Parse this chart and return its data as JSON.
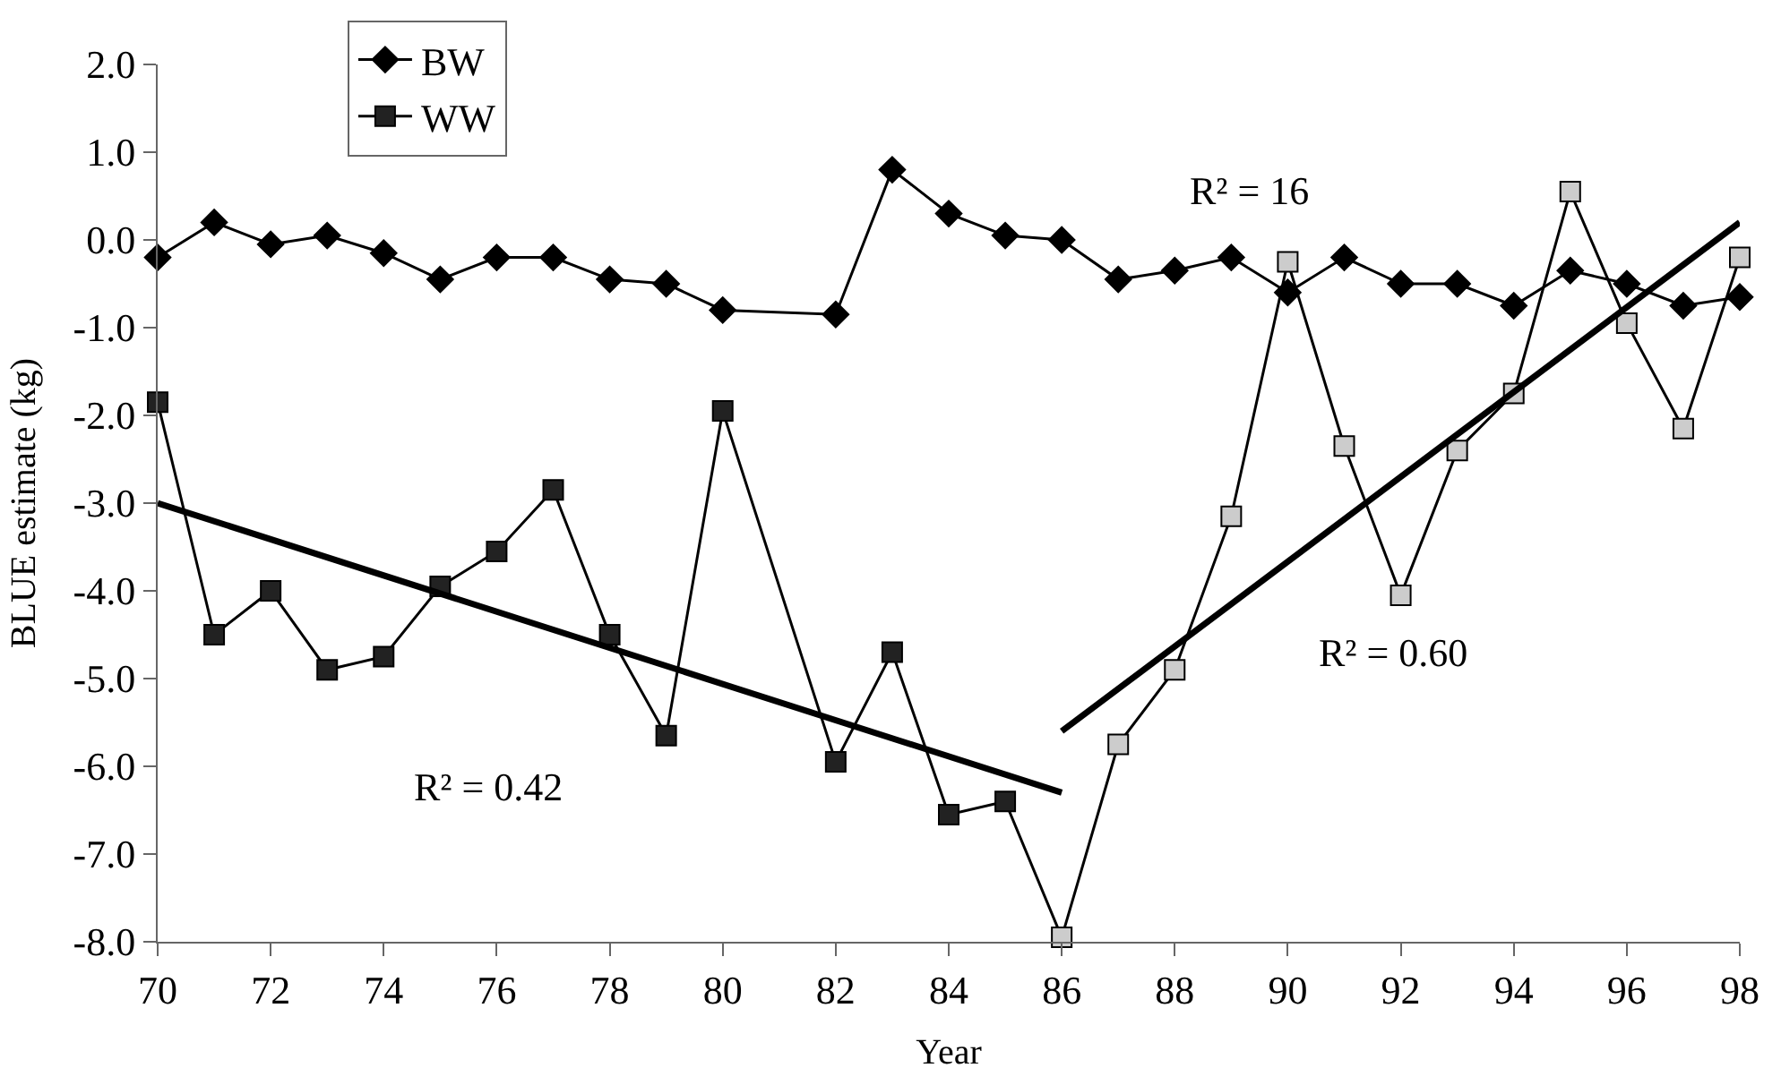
{
  "chart_data": {
    "type": "line",
    "xlabel": "Year",
    "ylabel": "BLUE estimate (kg)",
    "xlim": [
      70,
      98
    ],
    "xticks": [
      70,
      72,
      74,
      76,
      78,
      80,
      82,
      84,
      86,
      88,
      90,
      92,
      94,
      96,
      98
    ],
    "ylim": [
      -8.0,
      2.0
    ],
    "yticks": [
      {
        "value": -8,
        "label": "-8.0"
      },
      {
        "value": -7,
        "label": "-7.0"
      },
      {
        "value": -6,
        "label": "-6.0"
      },
      {
        "value": -5,
        "label": "-5.0"
      },
      {
        "value": -4,
        "label": "-4.0"
      },
      {
        "value": -3,
        "label": "-3.0"
      },
      {
        "value": -2,
        "label": "-2.0"
      },
      {
        "value": -1,
        "label": "-1.0"
      },
      {
        "value": 0,
        "label": "0.0"
      },
      {
        "value": 1,
        "label": "1.0"
      },
      {
        "value": 2,
        "label": "2.0"
      }
    ],
    "legend": "top left",
    "x": [
      70,
      71,
      72,
      73,
      74,
      75,
      76,
      77,
      78,
      79,
      80,
      82,
      83,
      84,
      85,
      86,
      87,
      88,
      89,
      90,
      91,
      92,
      93,
      94,
      95,
      96,
      97,
      98
    ],
    "series": [
      {
        "name": "BW",
        "color": "#000000",
        "marker": "diamond",
        "values": [
          -0.2,
          0.2,
          -0.05,
          0.05,
          -0.15,
          -0.45,
          -0.2,
          -0.2,
          -0.45,
          -0.5,
          -0.8,
          -0.85,
          0.8,
          0.3,
          0.05,
          0.0,
          -0.45,
          -0.35,
          -0.2,
          -0.6,
          -0.2,
          -0.5,
          -0.5,
          -0.75,
          -0.35,
          -0.5,
          -0.75,
          -0.65
        ]
      },
      {
        "name": "WW",
        "color": "#000000",
        "marker": "square",
        "colors": [
          "#222222",
          "#222222",
          "#222222",
          "#222222",
          "#222222",
          "#222222",
          "#222222",
          "#222222",
          "#222222",
          "#222222",
          "#222222",
          "#222222",
          "#222222",
          "#222222",
          "#222222",
          "#cccccc",
          "#cccccc",
          "#cccccc",
          "#cccccc",
          "#cccccc",
          "#cccccc",
          "#cccccc",
          "#cccccc",
          "#cccccc",
          "#cccccc",
          "#cccccc",
          "#cccccc",
          "#cccccc"
        ],
        "values": [
          -1.85,
          -4.5,
          -4.0,
          -4.9,
          -4.75,
          -3.95,
          -3.55,
          -2.85,
          -4.5,
          -5.65,
          -1.95,
          -5.95,
          -4.7,
          -6.55,
          -6.4,
          -7.95,
          -5.75,
          -4.9,
          -3.15,
          -0.25,
          -2.35,
          -4.05,
          -2.4,
          -1.75,
          0.55,
          -0.95,
          -2.15,
          -0.2
        ]
      },
      {
        "type": "line",
        "color": "#000000",
        "marker": "none",
        "x": [
          70,
          86
        ],
        "values": [
          -3.0,
          -6.3
        ]
      },
      {
        "type": "line",
        "color": "#000000",
        "marker": "none",
        "x": [
          86,
          98
        ],
        "values": [
          -5.6,
          0.2
        ]
      }
    ],
    "annotations": [
      "R² = 16",
      "R² = 0.42",
      "R² = 0.60"
    ]
  }
}
